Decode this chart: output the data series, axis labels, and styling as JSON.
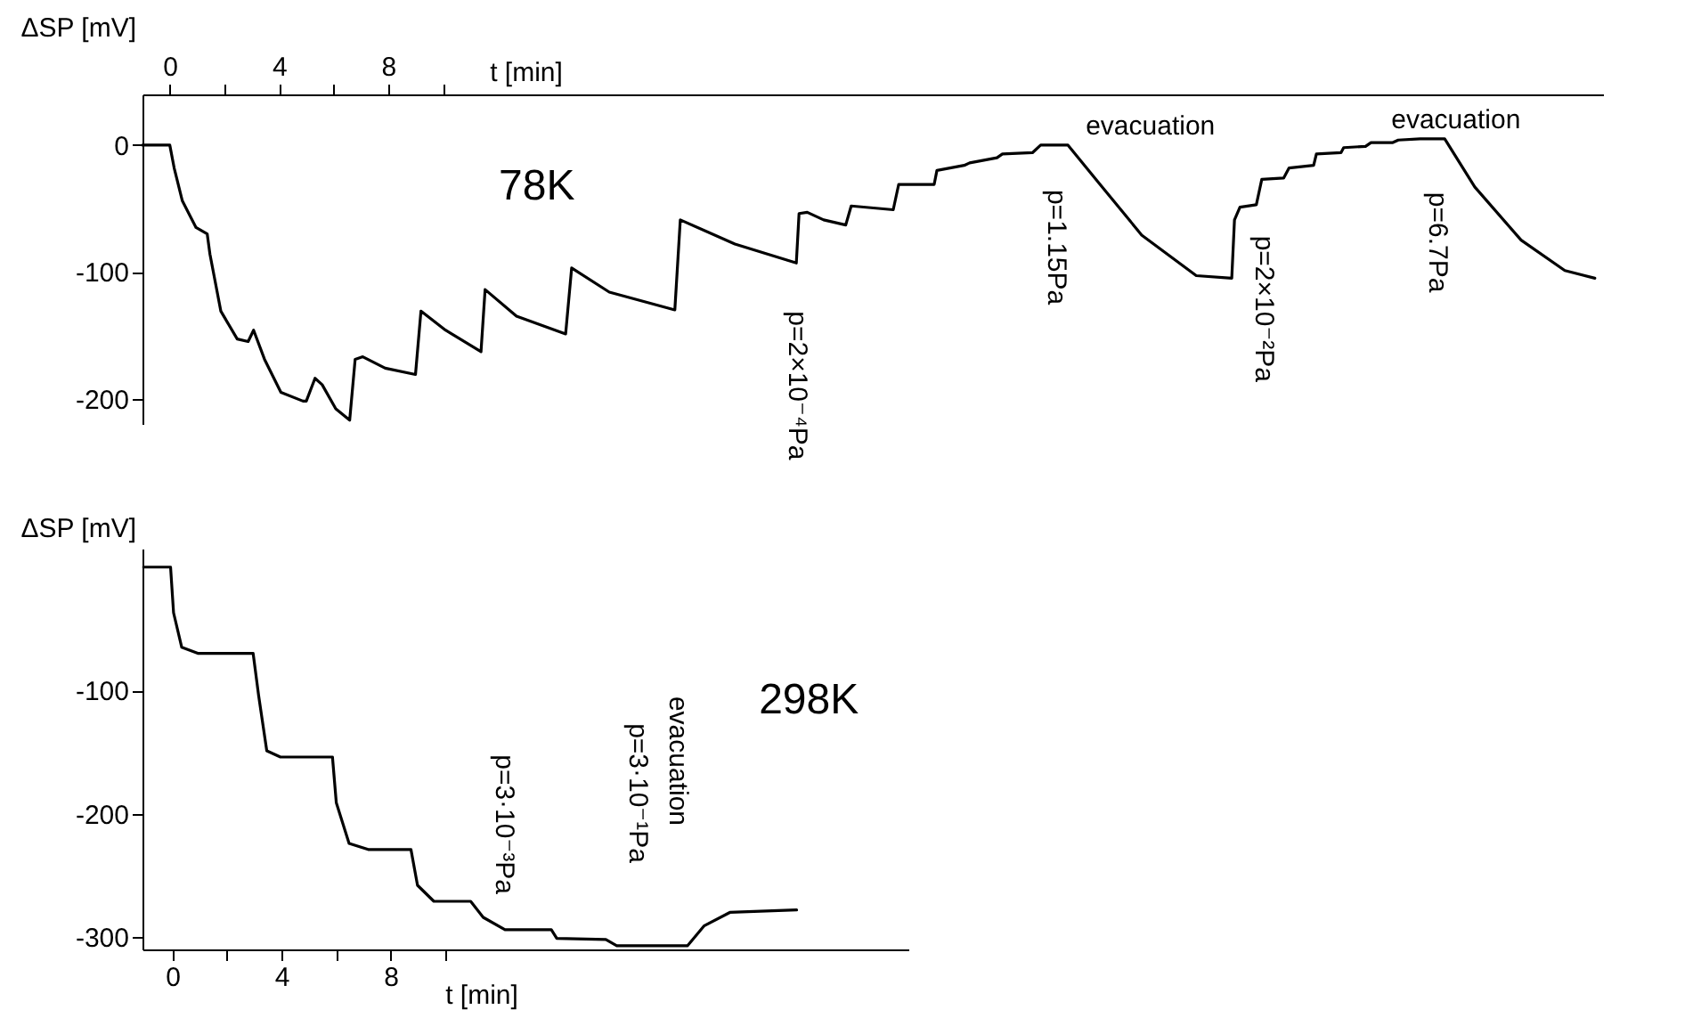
{
  "chart_data": [
    {
      "type": "line",
      "xlabel": "t [min]",
      "ylabel": "ΔSP [mV]",
      "grid": false,
      "marker": "none",
      "line_style": "solid",
      "x": [
        -1.0,
        0,
        0.16,
        0.46,
        0.96,
        1.37,
        1.47,
        1.87,
        2.47,
        2.87,
        3.07,
        3.47,
        4.07,
        4.88,
        5.0,
        5.32,
        5.58,
        6.08,
        6.59,
        6.79,
        7.07,
        7.89,
        9.0,
        9.2,
        10.1,
        11.4,
        11.55,
        12.7,
        14.5,
        14.72,
        16.1,
        18.5,
        18.7,
        20.7,
        22.95,
        23.05,
        23.35,
        23.95,
        24.76,
        24.96,
        26.5,
        26.7,
        28.0,
        28.1,
        29.1,
        29.3,
        30.3,
        30.5,
        31.6,
        31.9,
        32.9,
        34.0,
        35.6,
        37.6,
        38.9,
        39.0,
        39.2,
        39.8,
        40.0,
        40.8,
        41.0,
        41.9,
        42.0,
        42.9,
        43.0,
        43.8,
        44.0,
        44.8,
        45.0,
        45.8,
        46.7,
        47.8,
        49.5,
        51.1,
        52.2
      ],
      "series": [
        {
          "color": "#000000",
          "values": [
            0,
            0,
            -18,
            -44,
            -65,
            -70,
            -86,
            -131,
            -153,
            -155,
            -146,
            -169,
            -195,
            -202,
            -202,
            -184,
            -189,
            -208,
            -217,
            -169,
            -167,
            -176,
            -181,
            -131,
            -146,
            -163,
            -114,
            -135,
            -149,
            -97,
            -116,
            -130,
            -59,
            -78,
            -93,
            -54,
            -53,
            -59,
            -63,
            -48,
            -51,
            -31,
            -31,
            -20,
            -16,
            -14,
            -10,
            -7,
            -6,
            0,
            0,
            -29,
            -71,
            -103,
            -105,
            -59,
            -49,
            -47,
            -27,
            -26,
            -18,
            -16,
            -7,
            -6,
            -2,
            -1,
            2,
            2,
            4,
            5,
            5,
            -33,
            -75,
            -99,
            -105
          ]
        }
      ],
      "xlim": [
        -1.0,
        52.5
      ],
      "xticks": [
        0,
        {
          "value": 2,
          "label": null
        },
        4,
        {
          "value": 6,
          "label": null
        },
        8,
        {
          "value": 10,
          "label": null
        }
      ],
      "ylim": [
        -220,
        40
      ],
      "yticks": [
        0,
        -100,
        -200
      ],
      "annotations": [
        "78K",
        {
          "text": "p=2×10⁻⁴Pa",
          "x": 23.0,
          "y": -93
        },
        {
          "text": "p=1.15Pa",
          "x": 31.9,
          "y": 0
        },
        {
          "text": "evacuation",
          "x": 32.9,
          "y": 0
        },
        {
          "text": "p=2×10⁻²Pa",
          "x": 39.2,
          "y": -49
        },
        {
          "text": "p=6.7Pa",
          "x": 45.8,
          "y": 5
        },
        {
          "text": "evacuation",
          "x": 46.7,
          "y": 5
        }
      ]
    },
    {
      "type": "line",
      "xlabel": "t [min]",
      "ylabel": "ΔSP [mV]",
      "grid": false,
      "marker": "none",
      "line_style": "solid",
      "x": [
        -1.06,
        -0.07,
        0.04,
        0.34,
        0.95,
        2.96,
        3.16,
        3.46,
        3.96,
        5.87,
        6.01,
        6.48,
        7.18,
        8.75,
        8.99,
        9.59,
        10.94,
        11.4,
        12.2,
        13.9,
        14.1,
        15.9,
        16.3,
        18.9,
        19.5,
        20.45,
        22.9
      ],
      "series": [
        {
          "color": "#000000",
          "values": [
            0,
            0,
            -37,
            -65,
            -70,
            -70,
            -104,
            -149,
            -154,
            -154,
            -191,
            -224,
            -229,
            -229,
            -258,
            -271,
            -271,
            -284,
            -294,
            -294,
            -301,
            -302,
            -307,
            -307,
            -291,
            -280,
            -278
          ]
        }
      ],
      "xlim": [
        -1.1,
        27
      ],
      "xticks": [
        0,
        {
          "value": 2,
          "label": null
        },
        4,
        {
          "value": 6,
          "label": null
        },
        8,
        {
          "value": 10,
          "label": null
        }
      ],
      "ylim": [
        -310,
        15
      ],
      "yticks": [
        -100,
        -200,
        -300
      ],
      "annotations": [
        "298K",
        {
          "text": "p=3·10⁻³Pa",
          "x": 10.9,
          "y": -271
        },
        "evacuation",
        "p=3·10⁻¹Pa"
      ]
    }
  ]
}
